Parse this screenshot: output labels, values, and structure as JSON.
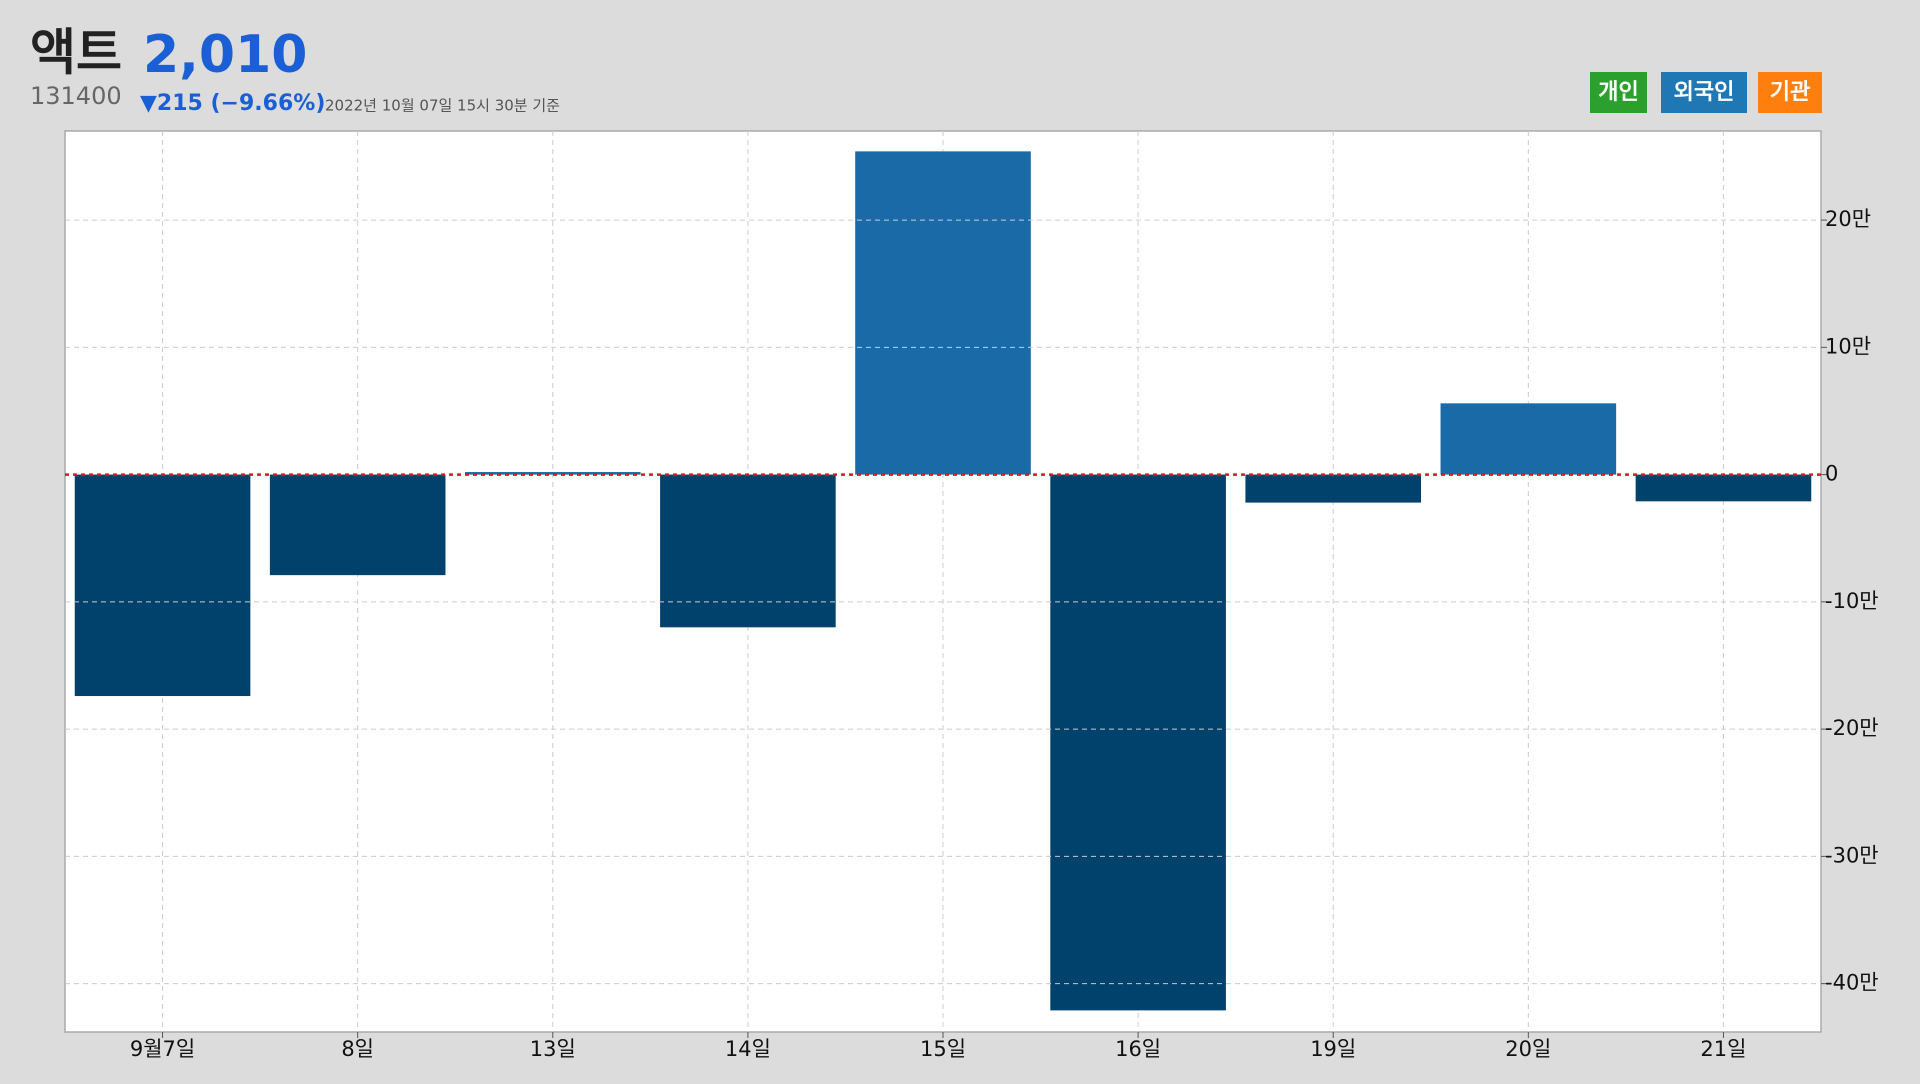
{
  "header": {
    "name": "액트",
    "price": "2,010",
    "code": "131400",
    "change": "▼215 (−9.66%)",
    "timestamp": "2022년 10월 07일 15시 30분 기준"
  },
  "buttons": [
    {
      "label": "개인",
      "color": "#2ca02c"
    },
    {
      "label": "외국인",
      "color": "#1f77b4"
    },
    {
      "label": "기관",
      "color": "#ff7f0e"
    }
  ],
  "chart_data": {
    "type": "bar",
    "categories": [
      "9월7일",
      "8일",
      "13일",
      "14일",
      "15일",
      "16일",
      "19일",
      "20일",
      "21일"
    ],
    "values": [
      -174000,
      -79000,
      2000,
      -120000,
      254000,
      -421000,
      -22000,
      56000,
      -21000
    ],
    "positive_color": "#1b6aa8",
    "negative_color": "#00426b",
    "ylim": [
      -438000,
      270000
    ],
    "yticks": [
      {
        "value": -400000,
        "label": "-40만"
      },
      {
        "value": -300000,
        "label": "-30만"
      },
      {
        "value": -200000,
        "label": "-20만"
      },
      {
        "value": -100000,
        "label": "-10만"
      },
      0,
      {
        "value": 100000,
        "label": "10만"
      },
      {
        "value": 200000,
        "label": "20만"
      }
    ],
    "grid": true
  }
}
